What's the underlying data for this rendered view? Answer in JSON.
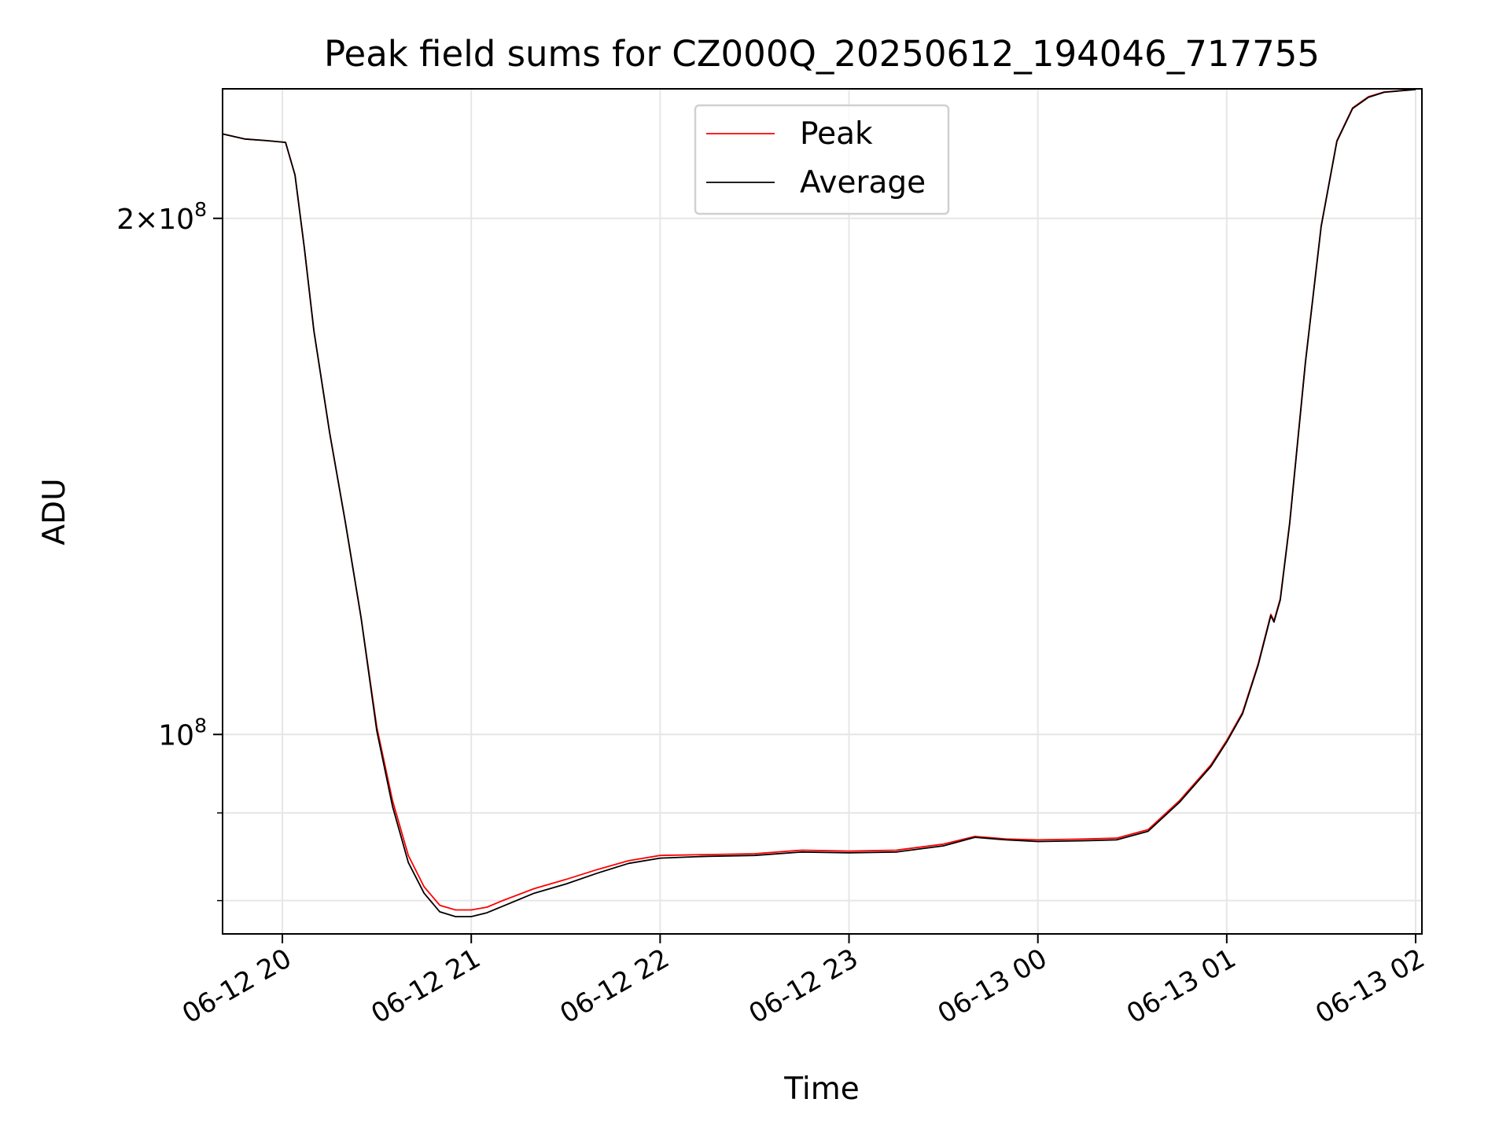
{
  "chart_data": {
    "type": "line",
    "title": "Peak field sums for CZ000Q_20250612_194046_717755",
    "xlabel": "Time",
    "ylabel": "ADU",
    "y_scale": "log",
    "ylim": [
      76500000,
      238000000
    ],
    "xlim": [
      "2025-06-12 19:41",
      "2025-06-13 02:02"
    ],
    "grid": true,
    "legend_position": "upper center",
    "x_ticks": [
      {
        "value": "2025-06-12 20:00",
        "label": "06-12 20"
      },
      {
        "value": "2025-06-12 21:00",
        "label": "06-12 21"
      },
      {
        "value": "2025-06-12 22:00",
        "label": "06-12 22"
      },
      {
        "value": "2025-06-12 23:00",
        "label": "06-12 23"
      },
      {
        "value": "2025-06-13 00:00",
        "label": "06-13 00"
      },
      {
        "value": "2025-06-13 01:00",
        "label": "06-13 01"
      },
      {
        "value": "2025-06-13 02:00",
        "label": "06-13 02"
      }
    ],
    "y_major_ticks": [
      {
        "value": 100000000,
        "base": "10",
        "exp": "8",
        "coef": ""
      },
      {
        "value": 200000000,
        "base": "10",
        "exp": "8",
        "coef": "2"
      }
    ],
    "y_minor_ticks": [
      70000000,
      80000000,
      90000000,
      300000000
    ],
    "series": [
      {
        "name": "Peak",
        "color": "#ff0000",
        "points": [
          [
            "2025-06-12 19:41",
            224000000
          ],
          [
            "2025-06-12 19:48",
            222500000
          ],
          [
            "2025-06-12 19:55",
            222000000
          ],
          [
            "2025-06-12 20:01",
            221500000
          ],
          [
            "2025-06-12 20:04",
            212000000
          ],
          [
            "2025-06-12 20:07",
            192000000
          ],
          [
            "2025-06-12 20:10",
            172000000
          ],
          [
            "2025-06-12 20:15",
            150000000
          ],
          [
            "2025-06-12 20:20",
            133000000
          ],
          [
            "2025-06-12 20:25",
            117000000
          ],
          [
            "2025-06-12 20:30",
            101000000
          ],
          [
            "2025-06-12 20:35",
            91500000
          ],
          [
            "2025-06-12 20:40",
            85000000
          ],
          [
            "2025-06-12 20:45",
            81500000
          ],
          [
            "2025-06-12 20:50",
            79500000
          ],
          [
            "2025-06-12 20:55",
            79000000
          ],
          [
            "2025-06-12 21:00",
            79000000
          ],
          [
            "2025-06-12 21:05",
            79300000
          ],
          [
            "2025-06-12 21:10",
            80000000
          ],
          [
            "2025-06-12 21:20",
            81300000
          ],
          [
            "2025-06-12 21:30",
            82300000
          ],
          [
            "2025-06-12 21:40",
            83400000
          ],
          [
            "2025-06-12 21:50",
            84400000
          ],
          [
            "2025-06-12 22:00",
            85000000
          ],
          [
            "2025-06-12 22:15",
            85100000
          ],
          [
            "2025-06-12 22:30",
            85200000
          ],
          [
            "2025-06-12 22:45",
            85600000
          ],
          [
            "2025-06-12 23:00",
            85500000
          ],
          [
            "2025-06-12 23:15",
            85600000
          ],
          [
            "2025-06-12 23:30",
            86300000
          ],
          [
            "2025-06-12 23:40",
            87200000
          ],
          [
            "2025-06-12 23:50",
            86900000
          ],
          [
            "2025-06-13 00:00",
            86800000
          ],
          [
            "2025-06-13 00:15",
            86900000
          ],
          [
            "2025-06-13 00:25",
            87000000
          ],
          [
            "2025-06-13 00:35",
            88000000
          ],
          [
            "2025-06-13 00:45",
            91500000
          ],
          [
            "2025-06-13 00:55",
            96000000
          ],
          [
            "2025-06-13 01:00",
            99200000
          ],
          [
            "2025-06-13 01:05",
            103000000
          ],
          [
            "2025-06-13 01:10",
            110000000
          ],
          [
            "2025-06-13 01:14",
            117500000
          ],
          [
            "2025-06-13 01:15",
            116500000
          ],
          [
            "2025-06-13 01:17",
            120000000
          ],
          [
            "2025-06-13 01:20",
            133000000
          ],
          [
            "2025-06-13 01:25",
            165000000
          ],
          [
            "2025-06-13 01:30",
            198000000
          ],
          [
            "2025-06-13 01:35",
            222000000
          ],
          [
            "2025-06-13 01:40",
            232000000
          ],
          [
            "2025-06-13 01:45",
            235500000
          ],
          [
            "2025-06-13 01:50",
            237000000
          ],
          [
            "2025-06-13 02:00",
            237800000
          ]
        ]
      },
      {
        "name": "Average",
        "color": "#000000",
        "points": [
          [
            "2025-06-12 19:41",
            224000000
          ],
          [
            "2025-06-12 19:48",
            222500000
          ],
          [
            "2025-06-12 19:55",
            222000000
          ],
          [
            "2025-06-12 20:01",
            221500000
          ],
          [
            "2025-06-12 20:04",
            212000000
          ],
          [
            "2025-06-12 20:07",
            192000000
          ],
          [
            "2025-06-12 20:10",
            172000000
          ],
          [
            "2025-06-12 20:15",
            150000000
          ],
          [
            "2025-06-12 20:20",
            133000000
          ],
          [
            "2025-06-12 20:25",
            117000000
          ],
          [
            "2025-06-12 20:30",
            100500000
          ],
          [
            "2025-06-12 20:35",
            90800000
          ],
          [
            "2025-06-12 20:40",
            84200000
          ],
          [
            "2025-06-12 20:45",
            80800000
          ],
          [
            "2025-06-12 20:50",
            78800000
          ],
          [
            "2025-06-12 20:55",
            78300000
          ],
          [
            "2025-06-12 21:00",
            78300000
          ],
          [
            "2025-06-12 21:05",
            78700000
          ],
          [
            "2025-06-12 21:10",
            79400000
          ],
          [
            "2025-06-12 21:20",
            80800000
          ],
          [
            "2025-06-12 21:30",
            81800000
          ],
          [
            "2025-06-12 21:40",
            83000000
          ],
          [
            "2025-06-12 21:50",
            84100000
          ],
          [
            "2025-06-12 22:00",
            84700000
          ],
          [
            "2025-06-12 22:15",
            84900000
          ],
          [
            "2025-06-12 22:30",
            85000000
          ],
          [
            "2025-06-12 22:45",
            85400000
          ],
          [
            "2025-06-12 23:00",
            85300000
          ],
          [
            "2025-06-12 23:15",
            85400000
          ],
          [
            "2025-06-12 23:30",
            86100000
          ],
          [
            "2025-06-12 23:40",
            87100000
          ],
          [
            "2025-06-12 23:50",
            86800000
          ],
          [
            "2025-06-13 00:00",
            86600000
          ],
          [
            "2025-06-13 00:15",
            86700000
          ],
          [
            "2025-06-13 00:25",
            86800000
          ],
          [
            "2025-06-13 00:35",
            87800000
          ],
          [
            "2025-06-13 00:45",
            91300000
          ],
          [
            "2025-06-13 00:55",
            95800000
          ],
          [
            "2025-06-13 01:00",
            99000000
          ],
          [
            "2025-06-13 01:05",
            102800000
          ],
          [
            "2025-06-13 01:10",
            109800000
          ],
          [
            "2025-06-13 01:14",
            117300000
          ],
          [
            "2025-06-13 01:15",
            116300000
          ],
          [
            "2025-06-13 01:17",
            119800000
          ],
          [
            "2025-06-13 01:20",
            132800000
          ],
          [
            "2025-06-13 01:25",
            164800000
          ],
          [
            "2025-06-13 01:30",
            197800000
          ],
          [
            "2025-06-13 01:35",
            221800000
          ],
          [
            "2025-06-13 01:40",
            231800000
          ],
          [
            "2025-06-13 01:45",
            235300000
          ],
          [
            "2025-06-13 01:50",
            236900000
          ],
          [
            "2025-06-13 02:00",
            237800000
          ]
        ]
      }
    ]
  }
}
